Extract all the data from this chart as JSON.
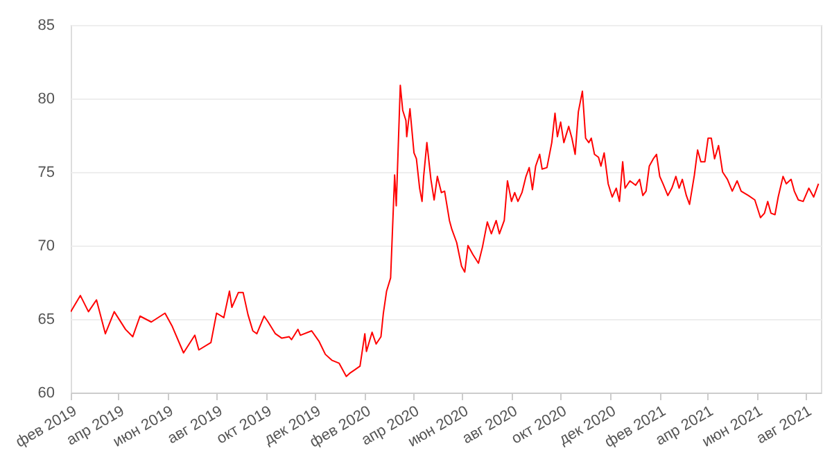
{
  "chart_data": {
    "type": "line",
    "grid": "y",
    "line_style": "solid",
    "xlim": [
      "2019-02-01",
      "2021-08-20"
    ],
    "ylim": [
      60,
      85
    ],
    "yticks": [
      60,
      65,
      70,
      75,
      80,
      85
    ],
    "xticks": [
      {
        "value": "2019-02-01",
        "label": "фев 2019"
      },
      {
        "value": "2019-04-01",
        "label": "апр 2019"
      },
      {
        "value": "2019-06-01",
        "label": "июн 2019"
      },
      {
        "value": "2019-08-01",
        "label": "авг 2019"
      },
      {
        "value": "2019-10-01",
        "label": "окт 2019"
      },
      {
        "value": "2019-12-01",
        "label": "дек 2019"
      },
      {
        "value": "2020-02-01",
        "label": "фев 2020"
      },
      {
        "value": "2020-04-01",
        "label": "апр 2020"
      },
      {
        "value": "2020-06-01",
        "label": "июн 2020"
      },
      {
        "value": "2020-08-01",
        "label": "авг 2020"
      },
      {
        "value": "2020-10-01",
        "label": "окт 2020"
      },
      {
        "value": "2020-12-01",
        "label": "дек 2020"
      },
      {
        "value": "2021-02-01",
        "label": "фев 2021"
      },
      {
        "value": "2021-04-01",
        "label": "апр 2021"
      },
      {
        "value": "2021-06-01",
        "label": "июн 2021"
      },
      {
        "value": "2021-08-01",
        "label": "авг 2021"
      }
    ],
    "x": [
      "2019-02-01",
      "2019-02-13",
      "2019-02-23",
      "2019-03-05",
      "2019-03-16",
      "2019-03-27",
      "2019-04-10",
      "2019-04-19",
      "2019-04-28",
      "2019-05-12",
      "2019-05-29",
      "2019-06-07",
      "2019-06-21",
      "2019-07-05",
      "2019-07-10",
      "2019-07-25",
      "2019-08-01",
      "2019-08-10",
      "2019-08-17",
      "2019-08-20",
      "2019-08-28",
      "2019-09-03",
      "2019-09-09",
      "2019-09-15",
      "2019-09-20",
      "2019-09-29",
      "2019-10-04",
      "2019-10-13",
      "2019-10-21",
      "2019-10-30",
      "2019-11-02",
      "2019-11-10",
      "2019-11-13",
      "2019-11-27",
      "2019-12-06",
      "2019-12-14",
      "2019-12-22",
      "2019-12-31",
      "2020-01-09",
      "2020-01-13",
      "2020-01-26",
      "2020-02-01",
      "2020-02-03",
      "2020-02-10",
      "2020-02-15",
      "2020-02-21",
      "2020-02-24",
      "2020-02-28",
      "2020-03-04",
      "2020-03-09",
      "2020-03-11",
      "2020-03-16",
      "2020-03-19",
      "2020-03-23",
      "2020-03-24",
      "2020-03-28",
      "2020-04-02",
      "2020-04-05",
      "2020-04-09",
      "2020-04-12",
      "2020-04-14",
      "2020-04-18",
      "2020-04-23",
      "2020-04-27",
      "2020-05-01",
      "2020-05-06",
      "2020-05-10",
      "2020-05-16",
      "2020-05-19",
      "2020-05-25",
      "2020-05-31",
      "2020-06-04",
      "2020-06-08",
      "2020-06-14",
      "2020-06-21",
      "2020-06-26",
      "2020-07-02",
      "2020-07-07",
      "2020-07-13",
      "2020-07-17",
      "2020-07-23",
      "2020-07-27",
      "2020-08-01",
      "2020-08-05",
      "2020-08-09",
      "2020-08-14",
      "2020-08-19",
      "2020-08-23",
      "2020-08-27",
      "2020-08-31",
      "2020-09-05",
      "2020-09-08",
      "2020-09-14",
      "2020-09-20",
      "2020-09-24",
      "2020-09-27",
      "2020-10-01",
      "2020-10-05",
      "2020-10-11",
      "2020-10-15",
      "2020-10-19",
      "2020-10-23",
      "2020-10-28",
      "2020-11-01",
      "2020-11-05",
      "2020-11-08",
      "2020-11-12",
      "2020-11-17",
      "2020-11-20",
      "2020-11-24",
      "2020-11-29",
      "2020-12-04",
      "2020-12-09",
      "2020-12-13",
      "2020-12-17",
      "2020-12-20",
      "2020-12-26",
      "2021-01-02",
      "2021-01-07",
      "2021-01-11",
      "2021-01-15",
      "2021-01-19",
      "2021-01-24",
      "2021-01-28",
      "2021-02-01",
      "2021-02-05",
      "2021-02-11",
      "2021-02-16",
      "2021-02-21",
      "2021-02-25",
      "2021-03-01",
      "2021-03-06",
      "2021-03-10",
      "2021-03-16",
      "2021-03-20",
      "2021-03-24",
      "2021-03-29",
      "2021-04-02",
      "2021-04-06",
      "2021-04-10",
      "2021-04-15",
      "2021-04-20",
      "2021-04-26",
      "2021-05-02",
      "2021-05-08",
      "2021-05-13",
      "2021-05-22",
      "2021-05-30",
      "2021-06-06",
      "2021-06-11",
      "2021-06-15",
      "2021-06-19",
      "2021-06-24",
      "2021-06-28",
      "2021-07-04",
      "2021-07-08",
      "2021-07-14",
      "2021-07-18",
      "2021-07-23",
      "2021-07-29",
      "2021-08-05",
      "2021-08-11",
      "2021-08-17"
    ],
    "series": [
      {
        "color": "#ff0000",
        "values": [
          65.5,
          66.6,
          65.5,
          66.3,
          64.0,
          65.5,
          64.3,
          63.8,
          65.2,
          64.8,
          65.4,
          64.5,
          62.7,
          63.9,
          62.9,
          63.4,
          65.4,
          65.1,
          66.9,
          65.8,
          66.8,
          66.8,
          65.3,
          64.2,
          64.0,
          65.2,
          64.8,
          64.0,
          63.7,
          63.8,
          63.6,
          64.3,
          63.9,
          64.2,
          63.5,
          62.6,
          62.2,
          62.0,
          61.1,
          61.3,
          61.8,
          64.0,
          62.8,
          64.1,
          63.3,
          63.8,
          65.4,
          66.9,
          67.8,
          74.8,
          72.7,
          80.9,
          79.2,
          78.5,
          77.4,
          79.3,
          76.3,
          75.9,
          73.9,
          73.0,
          74.7,
          77.0,
          74.5,
          73.1,
          74.7,
          73.6,
          73.7,
          71.7,
          71.1,
          70.2,
          68.6,
          68.2,
          70.0,
          69.4,
          68.8,
          69.9,
          71.6,
          70.8,
          71.7,
          70.8,
          71.7,
          74.4,
          73.0,
          73.6,
          73.0,
          73.6,
          74.7,
          75.3,
          73.8,
          75.4,
          76.2,
          75.2,
          75.3,
          77.0,
          79.0,
          77.4,
          78.4,
          77.0,
          78.1,
          77.3,
          76.2,
          79.1,
          80.5,
          77.3,
          77.0,
          77.3,
          76.2,
          76.0,
          75.4,
          76.3,
          74.2,
          73.3,
          73.9,
          73.0,
          75.7,
          73.9,
          74.4,
          74.1,
          74.5,
          73.4,
          73.7,
          75.4,
          75.9,
          76.2,
          74.7,
          74.2,
          73.4,
          73.9,
          74.7,
          73.9,
          74.5,
          73.4,
          72.8,
          74.8,
          76.5,
          75.7,
          75.7,
          77.3,
          77.3,
          75.9,
          76.8,
          75.0,
          74.5,
          73.7,
          74.4,
          73.7,
          73.4,
          73.1,
          71.9,
          72.2,
          73.0,
          72.2,
          72.1,
          73.3,
          74.7,
          74.2,
          74.5,
          73.7,
          73.1,
          73.0,
          73.9,
          73.3,
          74.2
        ]
      }
    ]
  }
}
